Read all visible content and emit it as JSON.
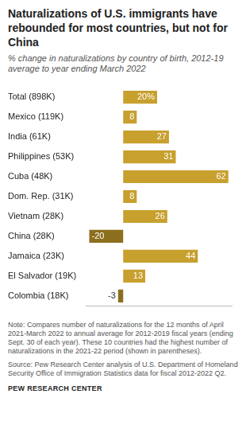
{
  "chart_data": {
    "type": "bar",
    "title": "Naturalizations of U.S. immigrants have rebounded for most countries, but not for China",
    "subtitle": "% change in naturalizations by country of birth, 2012-19 average to year ending March 2022",
    "categories": [
      "Total (898K)",
      "Mexico (119K)",
      "India (61K)",
      "Philippines (53K)",
      "Cuba (48K)",
      "Dom. Rep. (31K)",
      "Vietnam (28K)",
      "China (28K)",
      "Jamaica (23K)",
      "El Salvador (19K)",
      "Colombia (18K)"
    ],
    "values": [
      20,
      8,
      27,
      31,
      62,
      8,
      26,
      -20,
      44,
      13,
      -3
    ],
    "value_labels": [
      "20%",
      "8",
      "27",
      "31",
      "62",
      "8",
      "26",
      "-20",
      "44",
      "13",
      "-3"
    ],
    "colors": [
      "#c7a02e",
      "#c7a02e",
      "#c7a02e",
      "#c7a02e",
      "#c7a02e",
      "#c7a02e",
      "#c7a02e",
      "#8c6f1e",
      "#c7a02e",
      "#c7a02e",
      "#8c6f1e"
    ],
    "orientation": "horizontal",
    "data_labels": true,
    "tick_labels": "y",
    "grid": false,
    "xlim": [
      -22,
      64
    ],
    "note": "Note: Compares number of naturalizations for the 12 months of April 2021-March 2022 to annual average for 2012-2019 fiscal years (ending Sept. 30 of each year). These 10 countries had the highest number of naturalizations in the 2021-22 period (shown in parentheses).",
    "source": "Source: Pew Research Center analysis of U.S. Department of Homeland Security Office of Immigration Statistics data for fiscal 2012-2022 Q2.",
    "footer": "PEW RESEARCH CENTER"
  }
}
